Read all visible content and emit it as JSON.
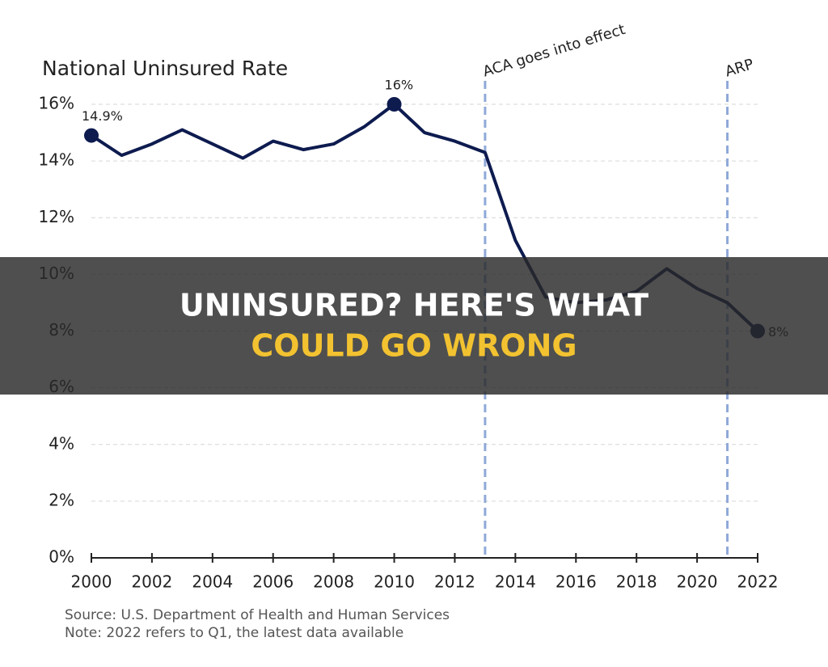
{
  "chart_data": {
    "type": "line",
    "title": "National Uninsured Rate",
    "x": [
      2000,
      2001,
      2002,
      2003,
      2004,
      2005,
      2006,
      2007,
      2008,
      2009,
      2010,
      2011,
      2012,
      2013,
      2014,
      2015,
      2016,
      2017,
      2018,
      2019,
      2020,
      2021,
      2022
    ],
    "series": [
      {
        "color": "#0d1b4f",
        "values": [
          14.9,
          14.2,
          14.6,
          15.1,
          14.6,
          14.1,
          14.7,
          14.4,
          14.6,
          15.2,
          16,
          15.0,
          14.7,
          14.3,
          11.2,
          9.2,
          9.0,
          9.1,
          9.4,
          10.2,
          9.5,
          9.0,
          8
        ],
        "value_labels": [
          "14.9%",
          null,
          null,
          null,
          null,
          null,
          null,
          null,
          null,
          null,
          "16%",
          null,
          null,
          null,
          null,
          null,
          null,
          null,
          null,
          null,
          null,
          null,
          "8%"
        ]
      }
    ],
    "xlim": [
      2000,
      2022
    ],
    "xticks": [
      2000,
      2002,
      2004,
      2006,
      2008,
      2010,
      2012,
      2014,
      2016,
      2018,
      2020,
      2022
    ],
    "ylim": [
      0,
      16
    ],
    "yticks": [
      {
        "value": 0,
        "label": "0%"
      },
      {
        "value": 2,
        "label": "2%"
      },
      {
        "value": 4,
        "label": "4%"
      },
      {
        "value": 6,
        "label": "6%"
      },
      {
        "value": 8,
        "label": "8%"
      },
      {
        "value": 10,
        "label": "10%"
      },
      {
        "value": 12,
        "label": "12%"
      },
      {
        "value": 14,
        "label": "14%"
      },
      {
        "value": 16,
        "label": "16%"
      }
    ],
    "grid": true,
    "annotations": [
      {
        "x": 2013,
        "label": "ACA goes into effect",
        "color": "#8fa9d8"
      },
      {
        "x": 2021,
        "label": "ARP",
        "color": "#8fa9d8"
      }
    ],
    "source": "Source: U.S. Department of Health and Human Services",
    "note": "Note: 2022 refers to Q1, the latest data available"
  },
  "banner": {
    "lines": [
      "UNINSURED? HERE'S WHAT",
      "COULD GO WRONG"
    ]
  }
}
